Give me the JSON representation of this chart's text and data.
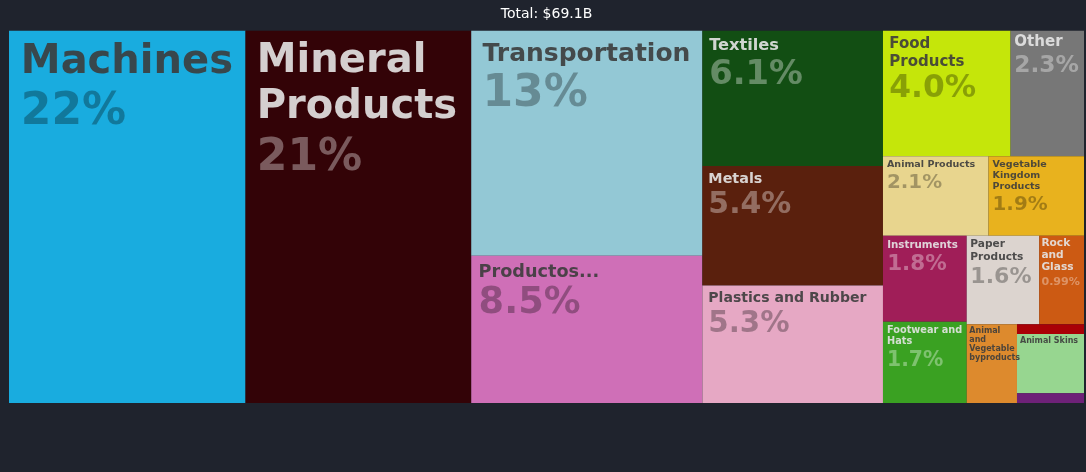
{
  "chart_data": {
    "type": "other",
    "title": "Total: $69.1B",
    "categories": [
      "Machines",
      "Mineral Products",
      "Transportation",
      "Productos...",
      "Textiles",
      "Metals",
      "Plastics and Rubber",
      "Food Products",
      "Other",
      "Animal Products",
      "Vegetable Kingdom Products",
      "Instruments",
      "Footwear and Hats",
      "Paper Products",
      "Rock and Glass",
      "Animal and Vegetable byproducts",
      null,
      "Animal Skins",
      null
    ],
    "values": [
      22,
      21,
      13,
      8.5,
      6.1,
      5.4,
      5.3,
      4.0,
      2.3,
      2.1,
      1.9,
      1.8,
      1.7,
      1.6,
      0.99,
      null,
      null,
      null,
      null
    ],
    "value_labels": [
      "22%",
      "21%",
      "13%",
      "8.5%",
      "6.1%",
      "5.4%",
      "5.3%",
      "4.0%",
      "2.3%",
      "2.1%",
      "1.9%",
      "1.8%",
      "1.7%",
      "1.6%",
      "0.99%",
      null,
      null,
      null,
      null
    ],
    "colors": [
      "#19acdf",
      "#330307",
      "#93c8d5",
      "#cf6fb7",
      "#124e13",
      "#5a200d",
      "#e6a8c4",
      "#c5e60a",
      "#777777",
      "#e8d58e",
      "#e8b21e",
      "#a01e58",
      "#3aa122",
      "#dcd4cf",
      "#cc5a13",
      "#dd8a2d",
      "#a90006",
      "#97d690",
      "#6e2178"
    ]
  }
}
